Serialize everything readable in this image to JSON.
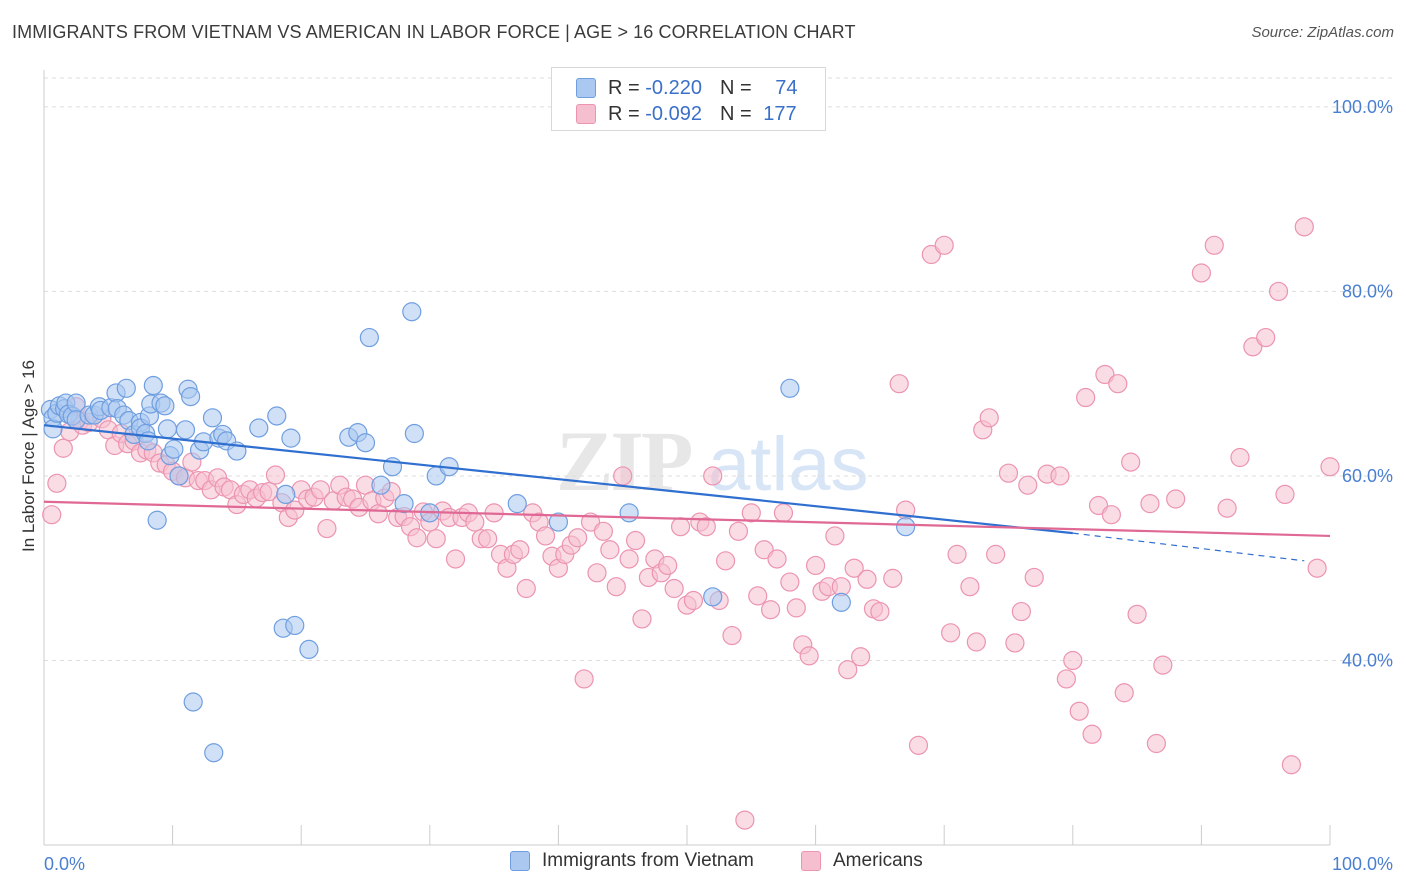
{
  "header": {
    "title": "IMMIGRANTS FROM VIETNAM VS AMERICAN IN LABOR FORCE | AGE > 16 CORRELATION CHART",
    "source": "Source: ZipAtlas.com"
  },
  "watermark": {
    "zip": "ZIP",
    "atlas": "atlas"
  },
  "colors": {
    "blue_fill": "#aac8f0",
    "blue_stroke": "#6f9ee0",
    "blue_line": "#2f6fcf",
    "pink_fill": "#f6bfd0",
    "pink_stroke": "#ec94b0",
    "pink_line": "#e06894",
    "accent_text": "#4a7fd0",
    "grid": "#dddddd"
  },
  "legend_top": {
    "rows": [
      {
        "r_label": "R = ",
        "r_value": "-0.220",
        "n_label": "N = ",
        "n_value": "74"
      },
      {
        "r_label": "R = ",
        "r_value": "-0.092",
        "n_label": "N = ",
        "n_value": "177"
      }
    ]
  },
  "legend_bottom": {
    "items": [
      "Immigrants from Vietnam",
      "Americans"
    ]
  },
  "chart_data": {
    "type": "scatter",
    "title": "IMMIGRANTS FROM VIETNAM VS AMERICAN IN LABOR FORCE | AGE > 16 CORRELATION CHART",
    "xlabel": "",
    "ylabel": "In Labor Force | Age > 16",
    "xlim": [
      0,
      100
    ],
    "ylim": [
      20,
      104
    ],
    "x_tick_labels": [
      "0.0%",
      "100.0%"
    ],
    "y_ticks": [
      40,
      60,
      80,
      100
    ],
    "y_tick_labels": [
      "40.0%",
      "60.0%",
      "80.0%",
      "100.0%"
    ],
    "grid": true,
    "legend_position": "top-center",
    "series": [
      {
        "name": "Immigrants from Vietnam",
        "r": -0.22,
        "n": 74,
        "trend": {
          "x0": 0,
          "y0": 65.5,
          "x1": 80,
          "y1": 53.8,
          "dashed_to_x": 98,
          "dashed_to_y": 50.8
        },
        "points": [
          [
            0.5,
            67.2
          ],
          [
            0.7,
            66.3
          ],
          [
            0.7,
            65.1
          ],
          [
            1,
            66.8
          ],
          [
            1.2,
            67.6
          ],
          [
            1.6,
            67.3
          ],
          [
            1.7,
            67.9
          ],
          [
            1.9,
            66.7
          ],
          [
            2.2,
            66.5
          ],
          [
            2.5,
            67.9
          ],
          [
            2.5,
            66.1
          ],
          [
            3.5,
            66.6
          ],
          [
            3.9,
            66.6
          ],
          [
            4.3,
            67.5
          ],
          [
            4.4,
            67.1
          ],
          [
            5.2,
            67.4
          ],
          [
            5.6,
            69
          ],
          [
            5.7,
            67.3
          ],
          [
            6.2,
            66.6
          ],
          [
            6.4,
            69.5
          ],
          [
            6.6,
            66
          ],
          [
            7,
            64.5
          ],
          [
            7.5,
            65.8
          ],
          [
            7.5,
            65.2
          ],
          [
            7.9,
            64.6
          ],
          [
            8.1,
            63.8
          ],
          [
            8.2,
            66.5
          ],
          [
            8.3,
            67.8
          ],
          [
            8.5,
            69.8
          ],
          [
            8.8,
            55.2
          ],
          [
            9.1,
            67.9
          ],
          [
            9.4,
            67.6
          ],
          [
            9.6,
            65.1
          ],
          [
            9.8,
            62.2
          ],
          [
            10.1,
            62.9
          ],
          [
            10.5,
            60
          ],
          [
            11,
            65
          ],
          [
            11.2,
            69.4
          ],
          [
            11.4,
            68.6
          ],
          [
            11.6,
            35.5
          ],
          [
            12.1,
            62.8
          ],
          [
            12.4,
            63.7
          ],
          [
            13.1,
            66.3
          ],
          [
            13.2,
            30
          ],
          [
            13.6,
            64.1
          ],
          [
            13.9,
            64.5
          ],
          [
            14.2,
            63.8
          ],
          [
            15,
            62.7
          ],
          [
            16.7,
            65.2
          ],
          [
            18.1,
            66.5
          ],
          [
            18.6,
            43.5
          ],
          [
            18.8,
            58
          ],
          [
            19.2,
            64.1
          ],
          [
            19.5,
            43.8
          ],
          [
            20.6,
            41.2
          ],
          [
            23.7,
            64.2
          ],
          [
            24.4,
            64.7
          ],
          [
            25,
            63.6
          ],
          [
            25.3,
            75
          ],
          [
            26.2,
            59
          ],
          [
            27.1,
            61
          ],
          [
            28,
            57
          ],
          [
            28.6,
            77.8
          ],
          [
            28.8,
            64.6
          ],
          [
            30,
            56
          ],
          [
            30.5,
            60
          ],
          [
            31.5,
            61
          ],
          [
            36.8,
            57
          ],
          [
            40,
            55
          ],
          [
            45.5,
            56
          ],
          [
            52,
            46.9
          ],
          [
            58,
            69.5
          ],
          [
            62,
            46.3
          ],
          [
            67,
            54.5
          ]
        ]
      },
      {
        "name": "Americans",
        "r": -0.092,
        "n": 177,
        "trend": {
          "x0": 0,
          "y0": 57.2,
          "x1": 100,
          "y1": 53.5
        },
        "points": [
          [
            0.6,
            55.8
          ],
          [
            1,
            59.2
          ],
          [
            1.5,
            63
          ],
          [
            2,
            64.8
          ],
          [
            2.5,
            67.5
          ],
          [
            2.8,
            66
          ],
          [
            3,
            65.5
          ],
          [
            3.5,
            65.8
          ],
          [
            4.5,
            66.2
          ],
          [
            5,
            65
          ],
          [
            5.5,
            63.3
          ],
          [
            6,
            64.6
          ],
          [
            6.5,
            63.5
          ],
          [
            7,
            63.8
          ],
          [
            7.5,
            62.5
          ],
          [
            8,
            62.8
          ],
          [
            8.5,
            62.5
          ],
          [
            9,
            61.4
          ],
          [
            9.5,
            61.2
          ],
          [
            10,
            60.5
          ],
          [
            10.5,
            60
          ],
          [
            11,
            59.8
          ],
          [
            11.5,
            61.5
          ],
          [
            12,
            59.5
          ],
          [
            12.5,
            59.5
          ],
          [
            13,
            58.5
          ],
          [
            13.5,
            59.8
          ],
          [
            14,
            58.8
          ],
          [
            14.5,
            58.5
          ],
          [
            15,
            56.9
          ],
          [
            15.5,
            58
          ],
          [
            16,
            58.5
          ],
          [
            16.5,
            57.6
          ],
          [
            17,
            58.2
          ],
          [
            17.5,
            58.3
          ],
          [
            18,
            60.1
          ],
          [
            18.5,
            57.1
          ],
          [
            19,
            55.5
          ],
          [
            19.5,
            56.3
          ],
          [
            20,
            58.5
          ],
          [
            20.5,
            57.5
          ],
          [
            21,
            57.7
          ],
          [
            21.5,
            58.5
          ],
          [
            22,
            54.3
          ],
          [
            22.5,
            57.3
          ],
          [
            23,
            59
          ],
          [
            23.5,
            57.7
          ],
          [
            24,
            57.5
          ],
          [
            24.5,
            56.6
          ],
          [
            25,
            59
          ],
          [
            25.5,
            57.3
          ],
          [
            26,
            55.9
          ],
          [
            26.5,
            57.6
          ],
          [
            27,
            58.3
          ],
          [
            27.5,
            55.5
          ],
          [
            28,
            55.6
          ],
          [
            28.5,
            54.5
          ],
          [
            29,
            53.3
          ],
          [
            29.5,
            56.1
          ],
          [
            30,
            55
          ],
          [
            30.5,
            53.2
          ],
          [
            31,
            56.2
          ],
          [
            31.5,
            55.5
          ],
          [
            32,
            51
          ],
          [
            32.5,
            55.5
          ],
          [
            33,
            56
          ],
          [
            33.5,
            55
          ],
          [
            34,
            53.2
          ],
          [
            34.5,
            53.2
          ],
          [
            35,
            56
          ],
          [
            35.5,
            51.5
          ],
          [
            36,
            50
          ],
          [
            36.5,
            51.5
          ],
          [
            37,
            52
          ],
          [
            37.5,
            47.8
          ],
          [
            38,
            56
          ],
          [
            38.5,
            55
          ],
          [
            39,
            53.5
          ],
          [
            39.5,
            51.3
          ],
          [
            40,
            50
          ],
          [
            40.5,
            51.5
          ],
          [
            41,
            52.5
          ],
          [
            41.5,
            53.3
          ],
          [
            42,
            38
          ],
          [
            42.5,
            55
          ],
          [
            43,
            49.5
          ],
          [
            43.5,
            54
          ],
          [
            44,
            52
          ],
          [
            44.5,
            48
          ],
          [
            45,
            60
          ],
          [
            45.5,
            51
          ],
          [
            46,
            53
          ],
          [
            46.5,
            44.5
          ],
          [
            47,
            49
          ],
          [
            47.5,
            51
          ],
          [
            48,
            49.5
          ],
          [
            48.5,
            50.3
          ],
          [
            49,
            47.8
          ],
          [
            49.5,
            54.5
          ],
          [
            50,
            46
          ],
          [
            50.5,
            46.5
          ],
          [
            51,
            55
          ],
          [
            51.5,
            54.5
          ],
          [
            52,
            60
          ],
          [
            52.5,
            46.5
          ],
          [
            53,
            50.8
          ],
          [
            53.5,
            42.7
          ],
          [
            54,
            54
          ],
          [
            54.5,
            22.7
          ],
          [
            55,
            56
          ],
          [
            55.5,
            47
          ],
          [
            56,
            52
          ],
          [
            56.5,
            45.5
          ],
          [
            57,
            51
          ],
          [
            57.5,
            56
          ],
          [
            58,
            48.5
          ],
          [
            58.5,
            45.7
          ],
          [
            59,
            41.7
          ],
          [
            59.5,
            40.5
          ],
          [
            60,
            50.3
          ],
          [
            60.5,
            47.5
          ],
          [
            61,
            48
          ],
          [
            61.5,
            53.5
          ],
          [
            62,
            48
          ],
          [
            62.5,
            39
          ],
          [
            63,
            50
          ],
          [
            63.5,
            40.4
          ],
          [
            64,
            48.8
          ],
          [
            64.5,
            45.6
          ],
          [
            65,
            45.3
          ],
          [
            66,
            48.9
          ],
          [
            66.5,
            70
          ],
          [
            67,
            56.3
          ],
          [
            68,
            30.8
          ],
          [
            69,
            84
          ],
          [
            70,
            85
          ],
          [
            70.5,
            43
          ],
          [
            71,
            51.5
          ],
          [
            72,
            48
          ],
          [
            72.5,
            42
          ],
          [
            73,
            65
          ],
          [
            73.5,
            66.3
          ],
          [
            74,
            51.5
          ],
          [
            75,
            60.3
          ],
          [
            75.5,
            41.9
          ],
          [
            76,
            45.3
          ],
          [
            76.5,
            59
          ],
          [
            77,
            49
          ],
          [
            78,
            60.2
          ],
          [
            79,
            60
          ],
          [
            79.5,
            38
          ],
          [
            80,
            40
          ],
          [
            80.5,
            34.5
          ],
          [
            81,
            68.5
          ],
          [
            81.5,
            32
          ],
          [
            82,
            56.8
          ],
          [
            82.5,
            71
          ],
          [
            83,
            55.8
          ],
          [
            83.5,
            70
          ],
          [
            84,
            36.5
          ],
          [
            84.5,
            61.5
          ],
          [
            85,
            45
          ],
          [
            86,
            57
          ],
          [
            86.5,
            31
          ],
          [
            87,
            39.5
          ],
          [
            88,
            57.5
          ],
          [
            90,
            82
          ],
          [
            91,
            85
          ],
          [
            92,
            56.5
          ],
          [
            93,
            62
          ],
          [
            94,
            74
          ],
          [
            95,
            75
          ],
          [
            96,
            80
          ],
          [
            96.5,
            58
          ],
          [
            97,
            28.7
          ],
          [
            98,
            87
          ],
          [
            99,
            50
          ],
          [
            100,
            61
          ]
        ]
      }
    ]
  }
}
